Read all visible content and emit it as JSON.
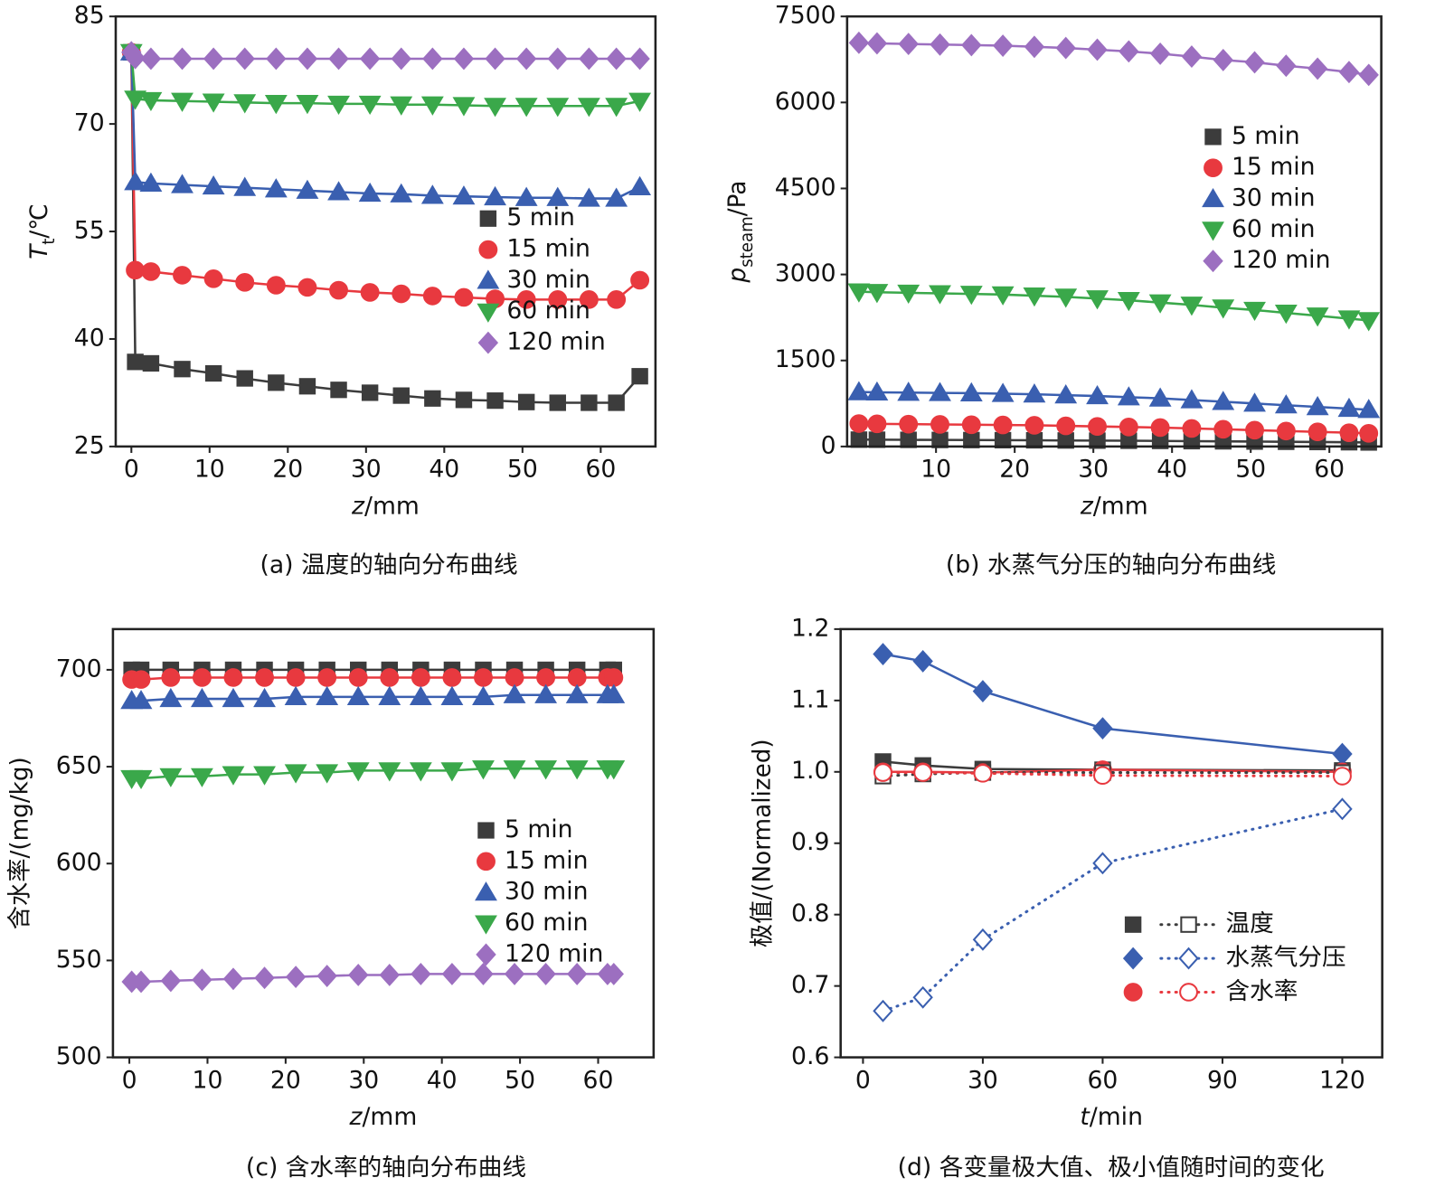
{
  "chart_data": [
    {
      "type": "line",
      "caption": "(a) 温度的轴向分布曲线",
      "xlabel": [
        {
          "text": "z",
          "style": "italic"
        },
        {
          "text": "/mm",
          "style": "normal"
        }
      ],
      "ylabel": [
        {
          "text": "T",
          "style": "italic"
        },
        {
          "text": "t",
          "style": "sub"
        },
        {
          "text": "/℃",
          "style": "normal"
        }
      ],
      "x": [
        0,
        0.5,
        2.5,
        6.5,
        10.5,
        14.5,
        18.5,
        22.5,
        26.5,
        30.5,
        34.5,
        38.5,
        42.5,
        46.5,
        50.5,
        54.5,
        58.5,
        62,
        65
      ],
      "xlim": [
        -2,
        67
      ],
      "xticks": [
        0,
        10,
        20,
        30,
        40,
        50,
        60
      ],
      "ylim": [
        25,
        85
      ],
      "yticks": [
        25,
        40,
        55,
        70,
        85
      ],
      "legend": "center right",
      "series": [
        {
          "name": "5 min",
          "color": "#3c3c3c",
          "marker": "square",
          "values": [
            80,
            36.8,
            36.6,
            35.8,
            35.2,
            34.5,
            33.9,
            33.4,
            32.9,
            32.5,
            32.1,
            31.7,
            31.5,
            31.4,
            31.2,
            31.1,
            31.1,
            31.1,
            34.8
          ]
        },
        {
          "name": "15 min",
          "color": "#e8393f",
          "marker": "circle",
          "values": [
            80,
            49.6,
            49.4,
            48.9,
            48.4,
            47.9,
            47.5,
            47.2,
            46.8,
            46.5,
            46.3,
            46.0,
            45.8,
            45.6,
            45.5,
            45.5,
            45.5,
            45.5,
            48.2
          ]
        },
        {
          "name": "30 min",
          "color": "#3a5fb0",
          "marker": "triangle-up",
          "values": [
            80,
            61.9,
            61.7,
            61.5,
            61.3,
            61.1,
            60.9,
            60.7,
            60.5,
            60.3,
            60.2,
            60.0,
            59.9,
            59.8,
            59.7,
            59.7,
            59.6,
            59.6,
            61.2
          ]
        },
        {
          "name": "60 min",
          "color": "#3aa84a",
          "marker": "triangle-down",
          "values": [
            80,
            73.5,
            73.3,
            73.2,
            73.1,
            73.0,
            72.9,
            72.9,
            72.8,
            72.8,
            72.7,
            72.7,
            72.6,
            72.5,
            72.5,
            72.5,
            72.5,
            72.5,
            73.2
          ]
        },
        {
          "name": "120 min",
          "color": "#9c6fc0",
          "marker": "diamond",
          "values": [
            80,
            79.2,
            79.1,
            79.1,
            79.1,
            79.1,
            79.1,
            79.1,
            79.1,
            79.1,
            79.1,
            79.1,
            79.1,
            79.1,
            79.1,
            79.1,
            79.1,
            79.1,
            79.1
          ]
        }
      ]
    },
    {
      "type": "line",
      "caption": "(b) 水蒸气分压的轴向分布曲线",
      "xlabel": [
        {
          "text": "z",
          "style": "italic"
        },
        {
          "text": "/mm",
          "style": "normal"
        }
      ],
      "ylabel": [
        {
          "text": "p",
          "style": "italic"
        },
        {
          "text": "steam",
          "style": "sub"
        },
        {
          "text": "/Pa",
          "style": "normal"
        }
      ],
      "x": [
        0.2,
        2.5,
        6.5,
        10.5,
        14.5,
        18.5,
        22.5,
        26.5,
        30.5,
        34.5,
        38.5,
        42.5,
        46.5,
        50.5,
        54.5,
        58.5,
        62.5,
        65
      ],
      "xlim": [
        -1.3,
        66.6
      ],
      "xticks": [
        10,
        20,
        30,
        40,
        50,
        60
      ],
      "ylim": [
        0,
        7500
      ],
      "yticks": [
        0,
        1500,
        3000,
        4500,
        6000,
        7500
      ],
      "legend": "upper right",
      "series": [
        {
          "name": "5 min",
          "color": "#3c3c3c",
          "marker": "square",
          "values": [
            120,
            118,
            116,
            114,
            112,
            110,
            108,
            105,
            102,
            100,
            97,
            93,
            90,
            86,
            82,
            78,
            74,
            70
          ]
        },
        {
          "name": "15 min",
          "color": "#e8393f",
          "marker": "circle",
          "values": [
            400,
            395,
            390,
            385,
            380,
            375,
            370,
            360,
            350,
            340,
            330,
            315,
            300,
            285,
            270,
            255,
            240,
            230
          ]
        },
        {
          "name": "30 min",
          "color": "#3a5fb0",
          "marker": "triangle-up",
          "values": [
            950,
            945,
            940,
            935,
            930,
            920,
            910,
            895,
            880,
            860,
            840,
            810,
            780,
            750,
            720,
            690,
            660,
            640
          ]
        },
        {
          "name": "60 min",
          "color": "#3aa84a",
          "marker": "triangle-down",
          "values": [
            2700,
            2690,
            2680,
            2670,
            2660,
            2650,
            2630,
            2610,
            2580,
            2550,
            2510,
            2470,
            2420,
            2380,
            2330,
            2280,
            2230,
            2200
          ]
        },
        {
          "name": "120 min",
          "color": "#9c6fc0",
          "marker": "diamond",
          "values": [
            7040,
            7030,
            7020,
            7010,
            7000,
            6990,
            6970,
            6950,
            6920,
            6890,
            6850,
            6800,
            6740,
            6700,
            6640,
            6590,
            6530,
            6480
          ]
        }
      ]
    },
    {
      "type": "line",
      "caption": "(c) 含水率的轴向分布曲线",
      "xlabel": [
        {
          "text": "z",
          "style": "italic"
        },
        {
          "text": "/mm",
          "style": "normal"
        }
      ],
      "ylabel": [
        {
          "text": "含水率/(mg/kg)",
          "style": "normal"
        }
      ],
      "x": [
        0.3,
        1.5,
        5.3,
        9.3,
        13.3,
        17.3,
        21.3,
        25.3,
        29.3,
        33.3,
        37.3,
        41.3,
        45.3,
        49.3,
        53.3,
        57.3,
        61.2,
        62
      ],
      "xlim": [
        -2.1,
        67.1
      ],
      "xticks": [
        0,
        10,
        20,
        30,
        40,
        50,
        60
      ],
      "ylim": [
        500,
        721
      ],
      "yticks": [
        500,
        550,
        600,
        650,
        700
      ],
      "legend": "center right",
      "series": [
        {
          "name": "5 min",
          "color": "#3c3c3c",
          "marker": "square",
          "values": [
            700,
            700,
            700,
            700,
            700,
            700,
            700,
            700,
            700,
            700,
            700,
            700,
            700,
            700,
            700,
            700,
            700,
            700
          ]
        },
        {
          "name": "15 min",
          "color": "#e8393f",
          "marker": "circle",
          "values": [
            695,
            695,
            696,
            696,
            696,
            696,
            696,
            696,
            696,
            696,
            696,
            696,
            696,
            696,
            696,
            696,
            696,
            696
          ]
        },
        {
          "name": "30 min",
          "color": "#3a5fb0",
          "marker": "triangle-up",
          "values": [
            684,
            684,
            685,
            685,
            685,
            685,
            686,
            686,
            686,
            686,
            686,
            686,
            686,
            687,
            687,
            687,
            687,
            687
          ]
        },
        {
          "name": "60 min",
          "color": "#3aa84a",
          "marker": "triangle-down",
          "values": [
            644,
            644,
            645,
            645,
            646,
            646,
            647,
            647,
            648,
            648,
            648,
            648,
            649,
            649,
            649,
            649,
            649,
            649
          ]
        },
        {
          "name": "120 min",
          "color": "#9c6fc0",
          "marker": "diamond",
          "values": [
            539,
            539,
            539.5,
            540,
            540.5,
            541,
            541.5,
            542,
            542.5,
            542.5,
            543,
            543,
            543,
            543,
            543,
            543,
            543,
            543
          ]
        }
      ]
    },
    {
      "type": "line",
      "caption": "(d) 各变量极大值、极小值随时间的变化",
      "xlabel": [
        {
          "text": "t",
          "style": "italic"
        },
        {
          "text": "/min",
          "style": "normal"
        }
      ],
      "ylabel": [
        {
          "text": "极值/(Normalized)",
          "style": "normal"
        }
      ],
      "x": [
        5,
        15,
        30,
        60,
        120
      ],
      "xlim": [
        -5.6,
        130
      ],
      "xticks": [
        0,
        30,
        60,
        90,
        120
      ],
      "ylim": [
        0.6,
        1.2
      ],
      "yticks": [
        0.6,
        0.7,
        0.8,
        0.9,
        {
          "value": 1.0,
          "label": "1.0"
        },
        1.1,
        1.2
      ],
      "legend": "lower right",
      "series": [
        {
          "name": "温度",
          "color": "#3c3c3c",
          "marker": "square",
          "values": [
            1.0145,
            1.009,
            1.004,
            1.003,
            1.002
          ],
          "min_values": [
            0.994,
            0.997,
            0.999,
            0.999,
            0.999
          ]
        },
        {
          "name": "水蒸气分压",
          "color": "#3a5fb0",
          "marker": "diamond",
          "values": [
            1.165,
            1.155,
            1.113,
            1.061,
            1.025
          ],
          "min_values": [
            0.665,
            0.684,
            0.765,
            0.872,
            0.948
          ]
        },
        {
          "name": "含水率",
          "color": "#e8393f",
          "marker": "circle",
          "values": [
            1.0,
            1.0,
            0.999,
            1.003,
            1.0
          ],
          "min_values": [
            0.999,
            0.999,
            0.998,
            0.995,
            0.994
          ]
        }
      ]
    }
  ]
}
